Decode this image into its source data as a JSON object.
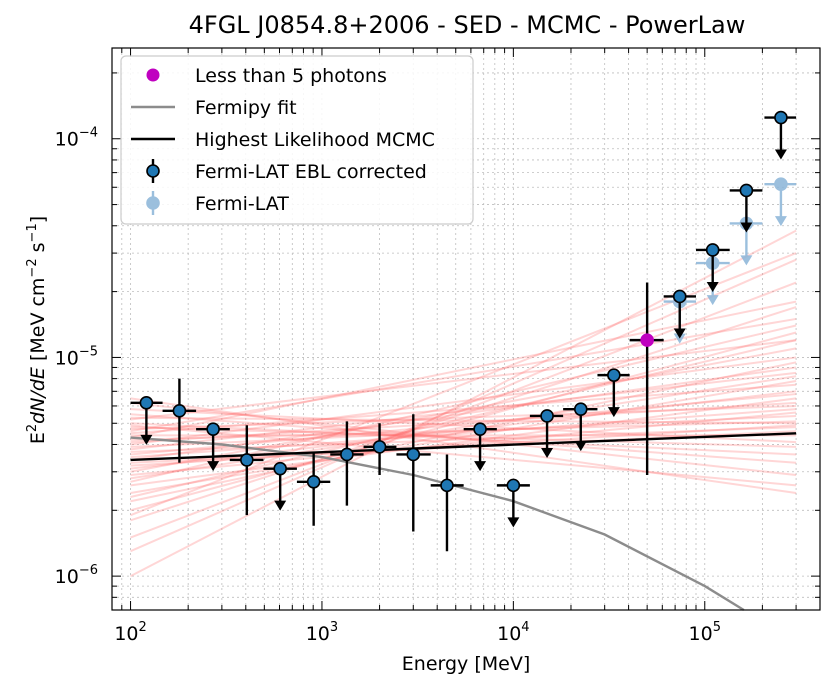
{
  "chart_data": {
    "type": "scatter",
    "title": "4FGL J0854.8+2006 - SED - MCMC - PowerLaw",
    "xlabel": "Energy [MeV]",
    "ylabel_base": "E",
    "ylabel_sup1": "2",
    "ylabel_mid": "dN/dE",
    "ylabel_unit_pre": " [MeV cm",
    "ylabel_sup2": "−2",
    "ylabel_unit_mid": " s",
    "ylabel_sup3": "−1",
    "ylabel_unit_post": "]",
    "xscale": "log",
    "yscale": "log",
    "xlim": [
      80,
      400000
    ],
    "ylim": [
      7e-07,
      0.00026
    ],
    "grid": true,
    "legend_position": "top-left",
    "x_ticks": [
      {
        "value": 100,
        "base": "10",
        "exp": "2"
      },
      {
        "value": 1000,
        "base": "10",
        "exp": "3"
      },
      {
        "value": 10000,
        "base": "10",
        "exp": "4"
      },
      {
        "value": 100000,
        "base": "10",
        "exp": "5"
      }
    ],
    "y_ticks": [
      {
        "value": 1e-06,
        "base": "10",
        "exp": "−6"
      },
      {
        "value": 1e-05,
        "base": "10",
        "exp": "−5"
      },
      {
        "value": 0.0001,
        "base": "10",
        "exp": "−4"
      }
    ],
    "legend": [
      {
        "label": "Less than 5 photons",
        "kind": "dot",
        "color": "#c000c0"
      },
      {
        "label": "Fermipy fit",
        "kind": "line",
        "color": "#8c8c8c"
      },
      {
        "label": "Highest Likelihood MCMC",
        "kind": "line",
        "color": "#000000"
      },
      {
        "label": "Fermi-LAT EBL corrected",
        "kind": "marker",
        "color": "#1f77b4"
      },
      {
        "label": "Fermi-LAT",
        "kind": "marker-light",
        "color": "#8ab4d8"
      }
    ],
    "colors": {
      "ebl_marker": "#1f77b4",
      "fermi_lat_light": "#8ab4d8",
      "low_photon": "#c000c0",
      "fermipy_fit": "#8c8c8c",
      "max_likelihood": "#000000",
      "mcmc_samples": "#ff6b6b"
    },
    "series": [
      {
        "name": "Fermi-LAT EBL corrected",
        "points": [
          {
            "x": 121,
            "xlo": 100,
            "xhi": 147,
            "y": 6.2e-06,
            "ul": true
          },
          {
            "x": 180,
            "xlo": 147,
            "xhi": 220,
            "y": 5.7e-06,
            "ylo": 3.3e-06,
            "yhi": 8e-06,
            "ul": false
          },
          {
            "x": 270,
            "xlo": 220,
            "xhi": 330,
            "y": 4.7e-06,
            "ul": true
          },
          {
            "x": 405,
            "xlo": 330,
            "xhi": 495,
            "y": 3.4e-06,
            "ylo": 1.9e-06,
            "yhi": 4.9e-06,
            "ul": false
          },
          {
            "x": 605,
            "xlo": 495,
            "xhi": 740,
            "y": 3.1e-06,
            "ul": true
          },
          {
            "x": 905,
            "xlo": 740,
            "xhi": 1105,
            "y": 2.7e-06,
            "ylo": 1.7e-06,
            "yhi": 3.7e-06,
            "ul": false
          },
          {
            "x": 1350,
            "xlo": 1105,
            "xhi": 1650,
            "y": 3.6e-06,
            "ylo": 2.1e-06,
            "yhi": 5.1e-06,
            "ul": false
          },
          {
            "x": 2000,
            "xlo": 1650,
            "xhi": 2450,
            "y": 3.9e-06,
            "ylo": 2.9e-06,
            "yhi": 5e-06,
            "ul": false
          },
          {
            "x": 3000,
            "xlo": 2450,
            "xhi": 3700,
            "y": 3.6e-06,
            "ylo": 1.6e-06,
            "yhi": 5.5e-06,
            "ul": false
          },
          {
            "x": 4500,
            "xlo": 3700,
            "xhi": 5500,
            "y": 2.6e-06,
            "ylo": 1.3e-06,
            "yhi": 3.6e-06,
            "ul": false
          },
          {
            "x": 6700,
            "xlo": 5500,
            "xhi": 8200,
            "y": 4.7e-06,
            "ul": true
          },
          {
            "x": 10000,
            "xlo": 8200,
            "xhi": 12200,
            "y": 2.6e-06,
            "ul": true
          },
          {
            "x": 15000,
            "xlo": 12200,
            "xhi": 18200,
            "y": 5.4e-06,
            "ul": true
          },
          {
            "x": 22500,
            "xlo": 18200,
            "xhi": 27500,
            "y": 5.8e-06,
            "ul": true
          },
          {
            "x": 33500,
            "xlo": 27500,
            "xhi": 40500,
            "y": 8.3e-06,
            "ul": true
          },
          {
            "x": 74000,
            "xlo": 61000,
            "xhi": 90000,
            "y": 1.9e-05,
            "ul": true
          },
          {
            "x": 110000,
            "xlo": 90000,
            "xhi": 135000,
            "y": 3.1e-05,
            "ul": true
          },
          {
            "x": 165000,
            "xlo": 135000,
            "xhi": 200000,
            "y": 5.8e-05,
            "ul": true
          },
          {
            "x": 250000,
            "xlo": 205000,
            "xhi": 300000,
            "y": 0.000125,
            "ul": true
          }
        ]
      },
      {
        "name": "Less than 5 photons",
        "points": [
          {
            "x": 50000,
            "xlo": 40500,
            "xhi": 61000,
            "y": 1.2e-05,
            "ylo": 2.9e-06,
            "yhi": 2.2e-05,
            "ul": false
          }
        ]
      },
      {
        "name": "Fermi-LAT",
        "points": [
          {
            "x": 74000,
            "xlo": 61000,
            "xhi": 90000,
            "y": 1.8e-05,
            "ul": true
          },
          {
            "x": 110000,
            "xlo": 90000,
            "xhi": 135000,
            "y": 2.7e-05,
            "ul": true
          },
          {
            "x": 165000,
            "xlo": 135000,
            "xhi": 200000,
            "y": 4.1e-05,
            "ul": true
          },
          {
            "x": 250000,
            "xlo": 205000,
            "xhi": 300000,
            "y": 6.2e-05,
            "ul": true
          }
        ]
      }
    ],
    "fermipy_fit": {
      "x": [
        100,
        300,
        1000,
        3000,
        10000,
        30000,
        100000,
        160000
      ],
      "y": [
        4.3e-06,
        4e-06,
        3.5e-06,
        2.9e-06,
        2.2e-06,
        1.55e-06,
        9e-07,
        7e-07
      ]
    },
    "max_likelihood": {
      "x": [
        100,
        300000
      ],
      "y": [
        3.4e-06,
        4.5e-06
      ]
    },
    "mcmc_samples": [
      [
        4.3e-06,
        1.8e-05
      ],
      [
        4.6e-06,
        1.5e-05
      ],
      [
        5.2e-06,
        1.2e-05
      ],
      [
        4e-06,
        1e-05
      ],
      [
        3.8e-06,
        8.5e-06
      ],
      [
        4.5e-06,
        7.5e-06
      ],
      [
        3.6e-06,
        6.8e-06
      ],
      [
        4.1e-06,
        6.2e-06
      ],
      [
        3.5e-06,
        5.8e-06
      ],
      [
        3.9e-06,
        5.4e-06
      ],
      [
        4.2e-06,
        5.1e-06
      ],
      [
        3.7e-06,
        4.8e-06
      ],
      [
        3.3e-06,
        4.6e-06
      ],
      [
        4.4e-06,
        4.4e-06
      ],
      [
        3.2e-06,
        4.9e-06
      ],
      [
        2.9e-06,
        5.6e-06
      ],
      [
        2.6e-06,
        6.5e-06
      ],
      [
        2.4e-06,
        7.8e-06
      ],
      [
        2.2e-06,
        9.5e-06
      ],
      [
        2e-06,
        1.3e-05
      ],
      [
        1.8e-06,
        1.7e-05
      ],
      [
        1.5e-06,
        2.2e-05
      ],
      [
        1.3e-06,
        2.8e-05
      ],
      [
        1e-06,
        3.8e-05
      ],
      [
        1.9e-06,
        3e-05
      ],
      [
        5e-06,
        3.6e-06
      ],
      [
        5.5e-06,
        3.3e-06
      ],
      [
        6.2e-06,
        2.9e-06
      ],
      [
        4.8e-06,
        3.9e-06
      ],
      [
        5.8e-06,
        4.1e-06
      ],
      [
        4.9e-06,
        2.6e-06
      ],
      [
        6.5e-06,
        2.4e-06
      ],
      [
        3e-06,
        1.1e-05
      ],
      [
        2.7e-06,
        1.4e-05
      ],
      [
        3.4e-06,
        9e-06
      ],
      [
        4.7e-06,
        6e-06
      ],
      [
        2.8e-06,
        8.2e-06
      ],
      [
        3.1e-06,
        7e-06
      ],
      [
        2.3e-06,
        1.2e-05
      ],
      [
        5.3e-06,
        5e-06
      ]
    ]
  }
}
